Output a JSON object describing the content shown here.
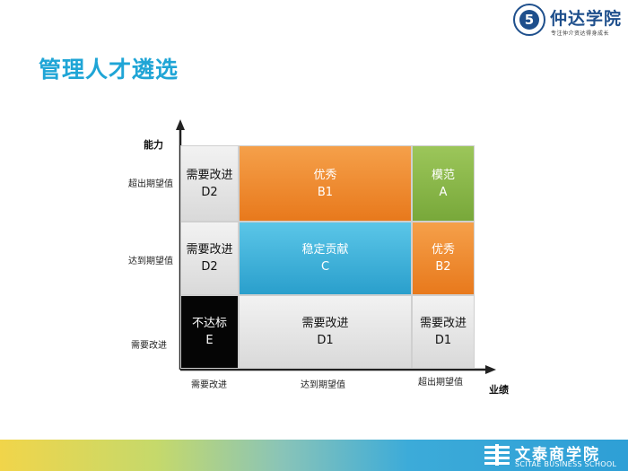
{
  "header": {
    "logo_text": "仲达学院",
    "logo_tagline": "专注仲介资达得身成长",
    "title": "管理人才遴选"
  },
  "matrix": {
    "y_axis_label": "能力",
    "x_axis_label": "业绩",
    "y_ticks": [
      "超出期望值",
      "达到期望值",
      "需要改进"
    ],
    "x_ticks": [
      "需要改进",
      "达到期望值",
      "超出期望值"
    ],
    "cells": {
      "d2_top": {
        "label": "需要改进",
        "code": "D2"
      },
      "b1": {
        "label": "优秀",
        "code": "B1"
      },
      "a": {
        "label": "模范",
        "code": "A"
      },
      "d2_mid": {
        "label": "需要改进",
        "code": "D2"
      },
      "c": {
        "label": "稳定贡献",
        "code": "C"
      },
      "b2": {
        "label": "优秀",
        "code": "B2"
      },
      "e": {
        "label": "不达标",
        "code": "E"
      },
      "d1_mid": {
        "label": "需要改进",
        "code": "D1"
      },
      "d1_right": {
        "label": "需要改进",
        "code": "D1"
      }
    },
    "colors": {
      "orange": "#e8791c",
      "green": "#78a83a",
      "blue": "#2a9fcc",
      "gray": "#d9d9d9",
      "black": "#050505"
    }
  },
  "footer": {
    "logo_cn": "文泰商学院",
    "logo_en": "SCITAE BUSINESS SCHOOL"
  }
}
